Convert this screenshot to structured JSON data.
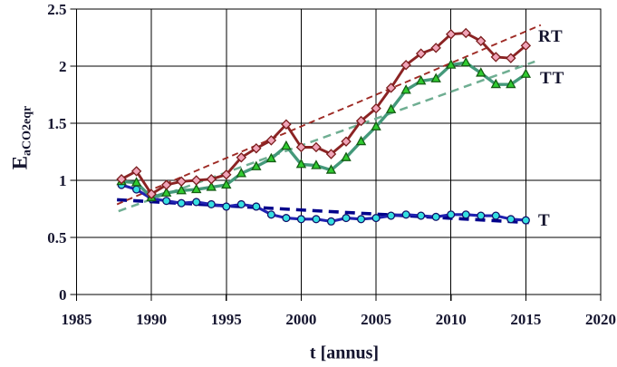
{
  "chart_data": {
    "type": "line",
    "title": "",
    "xlabel": "t [annus]",
    "ylabel_main": "E",
    "ylabel_sub": "aCO2eqr",
    "xlim": [
      1985,
      2020
    ],
    "ylim": [
      0,
      2.5
    ],
    "grid": true,
    "x_ticks": [
      1985,
      1990,
      1995,
      2000,
      2005,
      2010,
      2015,
      2020
    ],
    "x_tick_labels": [
      "1985",
      "1990",
      "1995",
      "2000",
      "2005",
      "2010",
      "2015",
      "2020"
    ],
    "y_ticks": [
      0,
      0.5,
      1,
      1.5,
      2,
      2.5
    ],
    "y_tick_labels": [
      "0",
      "0.5",
      "1",
      "1.5",
      "2",
      "2.5"
    ],
    "x": [
      1988,
      1989,
      1990,
      1991,
      1992,
      1993,
      1994,
      1995,
      1996,
      1997,
      1998,
      1999,
      2000,
      2001,
      2002,
      2003,
      2004,
      2005,
      2006,
      2007,
      2008,
      2009,
      2010,
      2011,
      2012,
      2013,
      2014,
      2015
    ],
    "series": [
      {
        "name": "T",
        "marker": "circle",
        "line_color": "#2121b0",
        "line_width": 3.1,
        "marker_fill": "#35e0e0",
        "marker_stroke": "#10106a",
        "values": [
          0.96,
          0.92,
          0.84,
          0.82,
          0.8,
          0.81,
          0.79,
          0.77,
          0.79,
          0.77,
          0.7,
          0.67,
          0.66,
          0.66,
          0.64,
          0.67,
          0.66,
          0.67,
          0.69,
          0.7,
          0.69,
          0.68,
          0.7,
          0.7,
          0.69,
          0.69,
          0.66,
          0.65
        ]
      },
      {
        "name": "TT",
        "marker": "triangle",
        "line_color": "#44997a",
        "line_width": 3.4,
        "marker_fill": "#30cc30",
        "marker_stroke": "#145c14",
        "values": [
          0.99,
          0.98,
          0.85,
          0.89,
          0.91,
          0.92,
          0.94,
          0.96,
          1.06,
          1.12,
          1.19,
          1.3,
          1.14,
          1.13,
          1.09,
          1.2,
          1.34,
          1.47,
          1.62,
          1.79,
          1.87,
          1.89,
          2.01,
          2.03,
          1.94,
          1.84,
          1.84,
          1.93
        ]
      },
      {
        "name": "RT",
        "marker": "diamond",
        "line_color": "#8b2323",
        "line_width": 2.9,
        "marker_fill": "#f0a4b8",
        "marker_stroke": "#7a1c1c",
        "values": [
          1.01,
          1.08,
          0.88,
          0.96,
          0.99,
          1.0,
          1.01,
          1.05,
          1.2,
          1.28,
          1.35,
          1.49,
          1.29,
          1.29,
          1.23,
          1.34,
          1.52,
          1.63,
          1.81,
          2.01,
          2.11,
          2.16,
          2.28,
          2.29,
          2.22,
          2.08,
          2.07,
          2.18
        ]
      }
    ],
    "trend_lines": [
      {
        "name": "T-trend",
        "color": "#00008b",
        "width": 3.6,
        "dash": "11 7",
        "x1": 1987.7,
        "v1": 0.83,
        "x2": 2015.2,
        "v2": 0.63
      },
      {
        "name": "TT-trend",
        "color": "#6fae92",
        "width": 2.5,
        "dash": "9 6",
        "x1": 1987.8,
        "v1": 0.73,
        "x2": 2015.6,
        "v2": 2.04
      },
      {
        "name": "RT-trend",
        "color": "#9e2b25",
        "width": 1.9,
        "dash": "7 4.5",
        "x1": 1987.7,
        "v1": 0.79,
        "x2": 2016.0,
        "v2": 2.36
      }
    ],
    "series_labels": {
      "rt": "RT",
      "tt": "TT",
      "t": "T"
    },
    "axis_color": "#000000",
    "legend_position": "right-inline"
  }
}
